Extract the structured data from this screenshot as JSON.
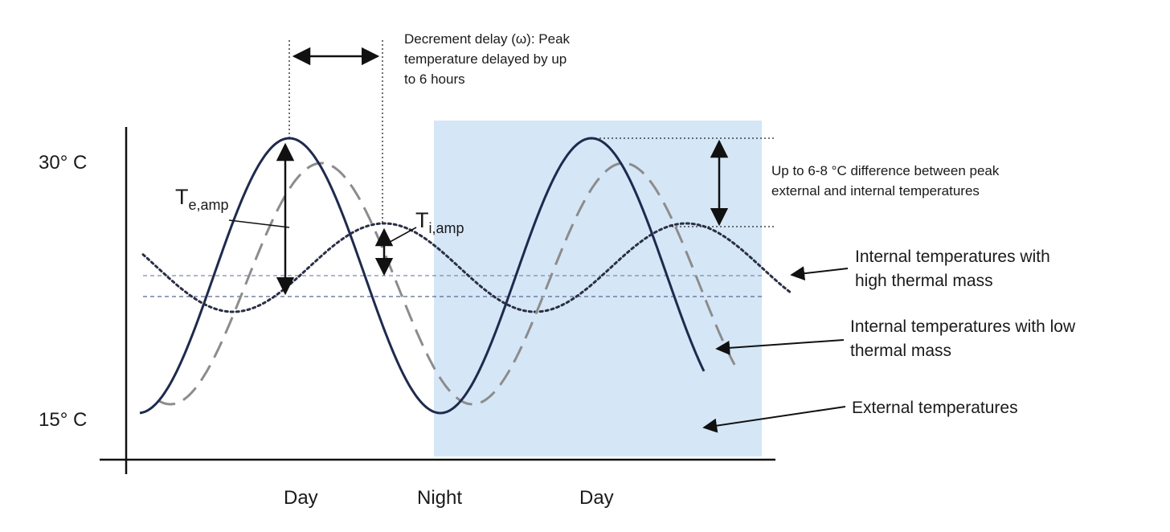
{
  "y_axis": {
    "top_label": "30° C",
    "bottom_label": "15° C"
  },
  "x_axis": {
    "labels": [
      "Day",
      "Night",
      "Day"
    ]
  },
  "annotations": {
    "decrement_delay": {
      "lines": [
        "Decrement delay (ω): Peak",
        "temperature delayed by up",
        "to 6 hours"
      ]
    },
    "peak_difference": {
      "lines": [
        "Up to 6-8 °C difference between peak",
        "external and internal temperatures"
      ]
    },
    "te_amp": {
      "symbol": "T",
      "subscript": "e,amp"
    },
    "ti_amp": {
      "symbol": "T",
      "subscript": "i,amp"
    }
  },
  "legend": {
    "high_mass": [
      "Internal temperatures with",
      "high thermal mass"
    ],
    "low_mass": [
      "Internal temperatures with low",
      "thermal mass"
    ],
    "external": [
      "External temperatures"
    ]
  },
  "colors": {
    "external_line": "#1f2a4d",
    "low_mass_line": "#8c8c8c",
    "high_mass_line": "#2a2f45",
    "night_shade": "#d5e6f7",
    "axis": "#111111"
  }
}
